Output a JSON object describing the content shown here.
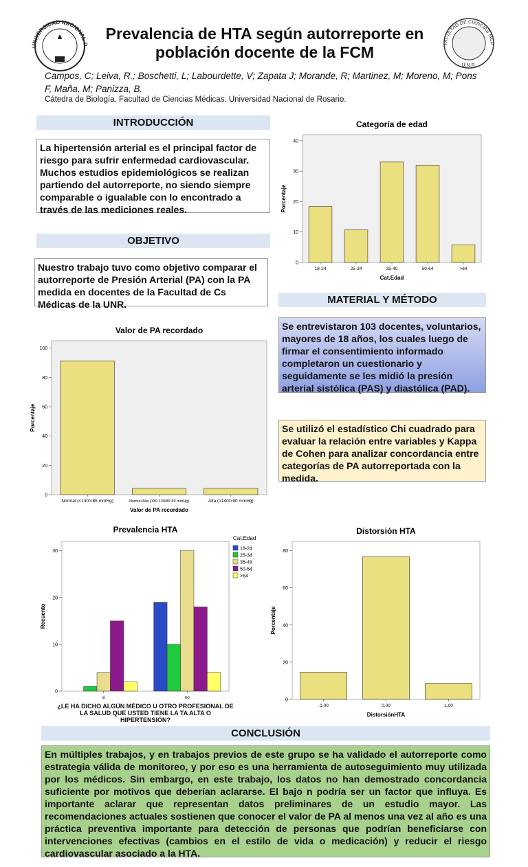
{
  "header": {
    "title": "Prevalencia de HTA según autorreporte en población docente de la FCM",
    "authors": "Campos, C; Leiva, R.; Boschetti, L; Labourdette, V; Zapata J; Morande, R; Martinez, M; Moreno, M; Pons F, Maña, M; Panizza, B.",
    "affiliation": "Cátedra de Biología. Facultad de Ciencias Médicas. Universidad Nacional de Rosario.",
    "left_logo": "UNIVERSIDAD NACIONAL DE ROSARIO",
    "right_logo": "FACULTAD DE CIENCIAS MÉDICAS",
    "right_logo_bottom": "U.N.R."
  },
  "introduccion": {
    "heading": "INTRODUCCIÓN",
    "text": "La hipertensión arterial es el principal factor de riesgo para sufrir enfermedad cardiovascular. Muchos estudios epidemiológicos se realizan partiendo del autorreporte, no siendo siempre comparable o igualable con lo encontrado a través de las mediciones reales."
  },
  "objetivo": {
    "heading": "OBJETIVO",
    "text": "Nuestro trabajo tuvo como objetivo comparar el autorreporte de Presión Arterial (PA) con la PA medida en docentes de la Facultad de Cs Médicas de la UNR."
  },
  "material": {
    "heading": "MATERIAL Y MÉTODO",
    "text": "Se entrevistaron 103 docentes, voluntarios, mayores de 18 años, los cuales luego de firmar el consentimiento informado completaron un cuestionario y seguidamente se les midió la presión arterial sistólica (PAS) y diastólica (PAD).",
    "text2": "Se utilizó el estadístico Chi cuadrado para evaluar la relación entre variables y Kappa de Cohen para analizar concordancia entre categorías de PA autorreportada con la medida."
  },
  "conclusion": {
    "heading": "CONCLUSIÓN",
    "text": "En múltiples trabajos, y en trabajos previos de este grupo se ha validado el autorreporte como estrategia válida de monitoreo, y por eso es una herramienta de autoseguimiento muy utilizada por los médicos. Sin embargo, en este trabajo, los datos no han demostrado concordancia suficiente por motivos que deberían aclararse. El bajo n podría ser un factor que influya. Es importante aclarar que representan datos preliminares de un estudio mayor. Las recomendaciones actuales sostienen que conocer el valor de PA al menos una vez al año es una práctica preventiva importante para detección de personas que podrían beneficiarse con intervenciones efectivas (cambios en el estilo de vida o medicación) y reducir el riesgo cardiovascular asociado a la HTA."
  },
  "chart_data": [
    {
      "type": "bar",
      "title": "Categoría de edad",
      "xlabel": "Cat.Edad",
      "ylabel": "Porcentaje",
      "categories": [
        "18-24",
        "25-34",
        "35-49",
        "50-64",
        ">64"
      ],
      "values": [
        18.4,
        10.7,
        33,
        32,
        5.8
      ],
      "color": "#ebe07f",
      "ylim": [
        0,
        42
      ],
      "yticks": [
        0,
        10,
        20,
        30,
        40
      ]
    },
    {
      "type": "bar",
      "title": "Valor de PA recordado",
      "xlabel": "Valor de PA recordado",
      "ylabel": "Porcentaje",
      "categories": [
        "Normal (<130/<85 mmHg)",
        "Normal Alta (130-139/85-89 mmHg)",
        "Alta (>140/>90 mmHg)"
      ],
      "values": [
        91.3,
        4.3,
        4.3
      ],
      "color": "#ebe07f",
      "ylim": [
        0,
        105
      ],
      "yticks": [
        0,
        20,
        40,
        60,
        80,
        100
      ]
    },
    {
      "type": "grouped_bar",
      "title": "Prevalencia HTA",
      "xlabel": "¿LE HA DICHO ALGÚN MÉDICO U OTRO PROFESIONAL DE LA SALUD QUE USTED TIENE LA TA ALTA O HIPERTENSIÓN?",
      "ylabel": "Recuento",
      "legend_title": "Cat.Edad",
      "categories": [
        "si",
        "no"
      ],
      "series": [
        {
          "name": "18-24",
          "color": "#2a4bc6",
          "values": [
            0,
            19
          ]
        },
        {
          "name": "25-34",
          "color": "#1fc93e",
          "values": [
            1,
            10
          ]
        },
        {
          "name": "35-49",
          "color": "#e8dd8c",
          "values": [
            4,
            30
          ]
        },
        {
          "name": "50-64",
          "color": "#8c1a8c",
          "values": [
            15,
            18
          ]
        },
        {
          "name": ">64",
          "color": "#ffff66",
          "values": [
            2,
            4
          ]
        }
      ],
      "ylim": [
        0,
        32
      ],
      "yticks": [
        0,
        10,
        20,
        30
      ]
    },
    {
      "type": "bar",
      "title": "Distorsión HTA",
      "xlabel": "DistorsiónHTA",
      "ylabel": "Porcentaje",
      "categories": [
        "-1,00",
        "0,00",
        "1,00"
      ],
      "values": [
        14.6,
        76.7,
        8.7
      ],
      "color": "#ebe07f",
      "ylim": [
        0,
        85
      ],
      "yticks": [
        0,
        20,
        40,
        60,
        80
      ]
    }
  ]
}
